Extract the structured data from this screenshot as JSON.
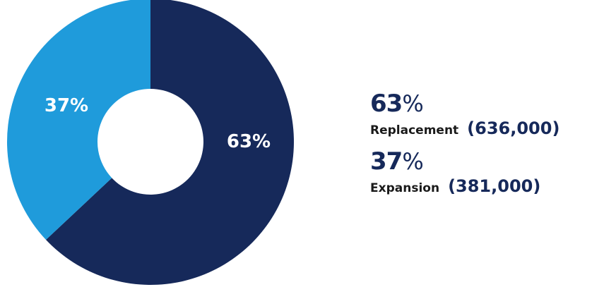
{
  "chart_data": {
    "type": "pie",
    "categories": [
      "Replacement",
      "Expansion"
    ],
    "values": [
      63,
      37
    ],
    "value_labels": [
      "63%",
      "37%"
    ],
    "counts": [
      "(636,000)",
      "(381,000)"
    ],
    "colors": [
      "#16295a",
      "#1f9bdb"
    ],
    "donut": true,
    "legend_position": "right"
  },
  "legend": {
    "items": [
      {
        "percent": "63",
        "percent_symbol": "%",
        "label": "Replacement",
        "count": "(636,000)"
      },
      {
        "percent": "37",
        "percent_symbol": "%",
        "label": "Expansion",
        "count": "(381,000)"
      }
    ]
  }
}
